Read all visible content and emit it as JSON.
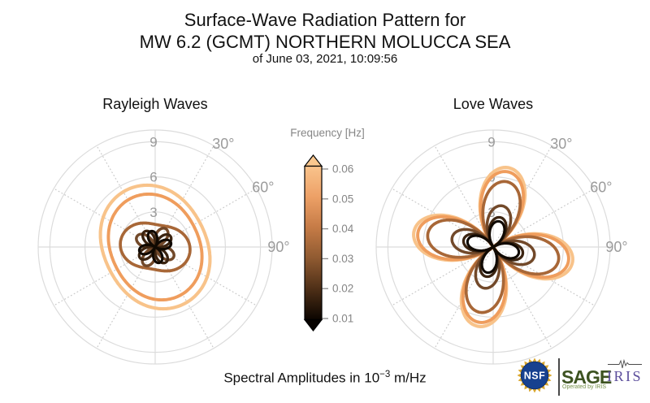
{
  "header": {
    "title_line1": "Surface-Wave Radiation Pattern for",
    "title_line2": "MW 6.2 (GCMT) NORTHERN MOLUCCA SEA",
    "title_line3": "of June 03, 2021, 10:09:56"
  },
  "footer": {
    "prefix": "Spectral Amplitudes in ",
    "base": "10",
    "exponent": "−3",
    "suffix": " m/Hz"
  },
  "colorbar": {
    "title": "Frequency [Hz]",
    "tick_labels": [
      "0.06",
      "0.05",
      "0.04",
      "0.03",
      "0.02",
      "0.01"
    ],
    "gradient_top_to_bottom": [
      "#F9C48C",
      "#EDA066",
      "#C57B46",
      "#8F5A31",
      "#4E2F17",
      "#0B0500"
    ],
    "arrow_top_color": "#FAC88F",
    "arrow_bottom_color": "#070300"
  },
  "logos": {
    "nsf": "NSF",
    "sage": "SAGE",
    "sage_sub": "Operated by IRIS",
    "iris": "IRIS"
  },
  "chart_data": [
    {
      "type": "polar-line",
      "title": "Rayleigh Waves",
      "r_axis": {
        "ticks": [
          3,
          6,
          9
        ],
        "max": 10,
        "units": "1e-3 m/Hz"
      },
      "theta_axis": {
        "label_texts": [
          "30°",
          "60°",
          "90°"
        ],
        "labels_deg": [
          30,
          60,
          90
        ],
        "zero": "top",
        "direction": "clockwise",
        "grid_step_deg": 30
      },
      "series": [
        {
          "freq_hz": 0.06,
          "label": "0.06",
          "color": "#F8C38A",
          "max_r": 5.45,
          "pattern": {
            "base": 4.9,
            "amp": 0.55,
            "theta0_deg": 153,
            "abs": false
          }
        },
        {
          "freq_hz": 0.05,
          "label": "0.05",
          "color": "#EF9D5D",
          "max_r": 4.65,
          "pattern": {
            "base": 4.2,
            "amp": 0.45,
            "theta0_deg": 154,
            "abs": false
          }
        },
        {
          "freq_hz": 0.04,
          "label": "0.04",
          "color": "#A86737",
          "max_r": 3.0,
          "pattern": {
            "base": 2.45,
            "amp": 0.55,
            "theta0_deg": 100,
            "abs": false
          }
        },
        {
          "freq_hz": 0.03,
          "label": "0.03",
          "color": "#72492A",
          "max_r": 1.8,
          "pattern": {
            "base": 0,
            "amp": 1.8,
            "theta0_deg": 30,
            "abs": true
          }
        },
        {
          "freq_hz": 0.02,
          "label": "0.02",
          "color": "#3B2411",
          "max_r": 1.6,
          "pattern": {
            "base": 0,
            "amp": 1.6,
            "theta0_deg": 55,
            "abs": true
          }
        },
        {
          "freq_hz": 0.01,
          "label": "0.01",
          "color": "#100901",
          "max_r": 1.4,
          "pattern": {
            "base": 0,
            "amp": 1.4,
            "theta0_deg": -15,
            "abs": true
          }
        }
      ]
    },
    {
      "type": "polar-line",
      "title": "Love Waves",
      "r_axis": {
        "ticks": [
          3,
          6,
          9
        ],
        "max": 10,
        "units": "1e-3 m/Hz"
      },
      "theta_axis": {
        "label_texts": [
          "30°",
          "60°",
          "90°"
        ],
        "labels_deg": [
          30,
          60,
          90
        ],
        "zero": "top",
        "direction": "clockwise",
        "grid_step_deg": 30
      },
      "series": [
        {
          "freq_hz": 0.06,
          "label": "0.06",
          "color": "#F8C38A",
          "max_r": 6.9,
          "pattern": {
            "base": 0,
            "amp": 6.9,
            "theta0_deg": 11,
            "abs": true
          }
        },
        {
          "freq_hz": 0.05,
          "label": "0.05",
          "color": "#EF9D5D",
          "max_r": 6.55,
          "pattern": {
            "base": 0,
            "amp": 6.55,
            "theta0_deg": 11,
            "abs": true
          }
        },
        {
          "freq_hz": 0.04,
          "label": "0.04",
          "color": "#A86737",
          "max_r": 5.7,
          "pattern": {
            "base": 0,
            "amp": 5.7,
            "theta0_deg": 12,
            "abs": true
          }
        },
        {
          "freq_hz": 0.03,
          "label": "0.03",
          "color": "#72492A",
          "max_r": 3.6,
          "pattern": {
            "base": 0,
            "amp": 3.6,
            "theta0_deg": 13,
            "abs": true
          }
        },
        {
          "freq_hz": 0.02,
          "label": "0.02",
          "color": "#3B2411",
          "max_r": 2.6,
          "pattern": {
            "base": 0,
            "amp": 2.6,
            "theta0_deg": 14,
            "abs": true
          }
        },
        {
          "freq_hz": 0.01,
          "label": "0.01",
          "color": "#100901",
          "max_r": 2.25,
          "pattern": {
            "base": 0,
            "amp": 2.25,
            "theta0_deg": 14,
            "abs": true
          }
        }
      ]
    }
  ]
}
